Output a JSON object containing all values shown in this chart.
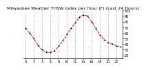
{
  "title": "Milwaukee Weather THSW Index per Hour (F) (Last 24 Hours)",
  "hours": [
    0,
    1,
    2,
    3,
    4,
    5,
    6,
    7,
    8,
    9,
    10,
    11,
    12,
    13,
    14,
    15,
    16,
    17,
    18,
    19,
    20,
    21,
    22,
    23
  ],
  "values": [
    68,
    60,
    50,
    38,
    30,
    26,
    25,
    28,
    36,
    46,
    57,
    68,
    78,
    88,
    92,
    90,
    80,
    68,
    56,
    48,
    43,
    40,
    37,
    35
  ],
  "line_color": "#ff0000",
  "marker_color": "#000000",
  "bg_color": "#ffffff",
  "ylim": [
    15,
    100
  ],
  "yticks": [
    20,
    30,
    40,
    50,
    60,
    70,
    80,
    90,
    100
  ],
  "grid_color": "#888888",
  "title_fontsize": 4.5,
  "tick_fontsize": 3.5,
  "xtick_step": 2
}
